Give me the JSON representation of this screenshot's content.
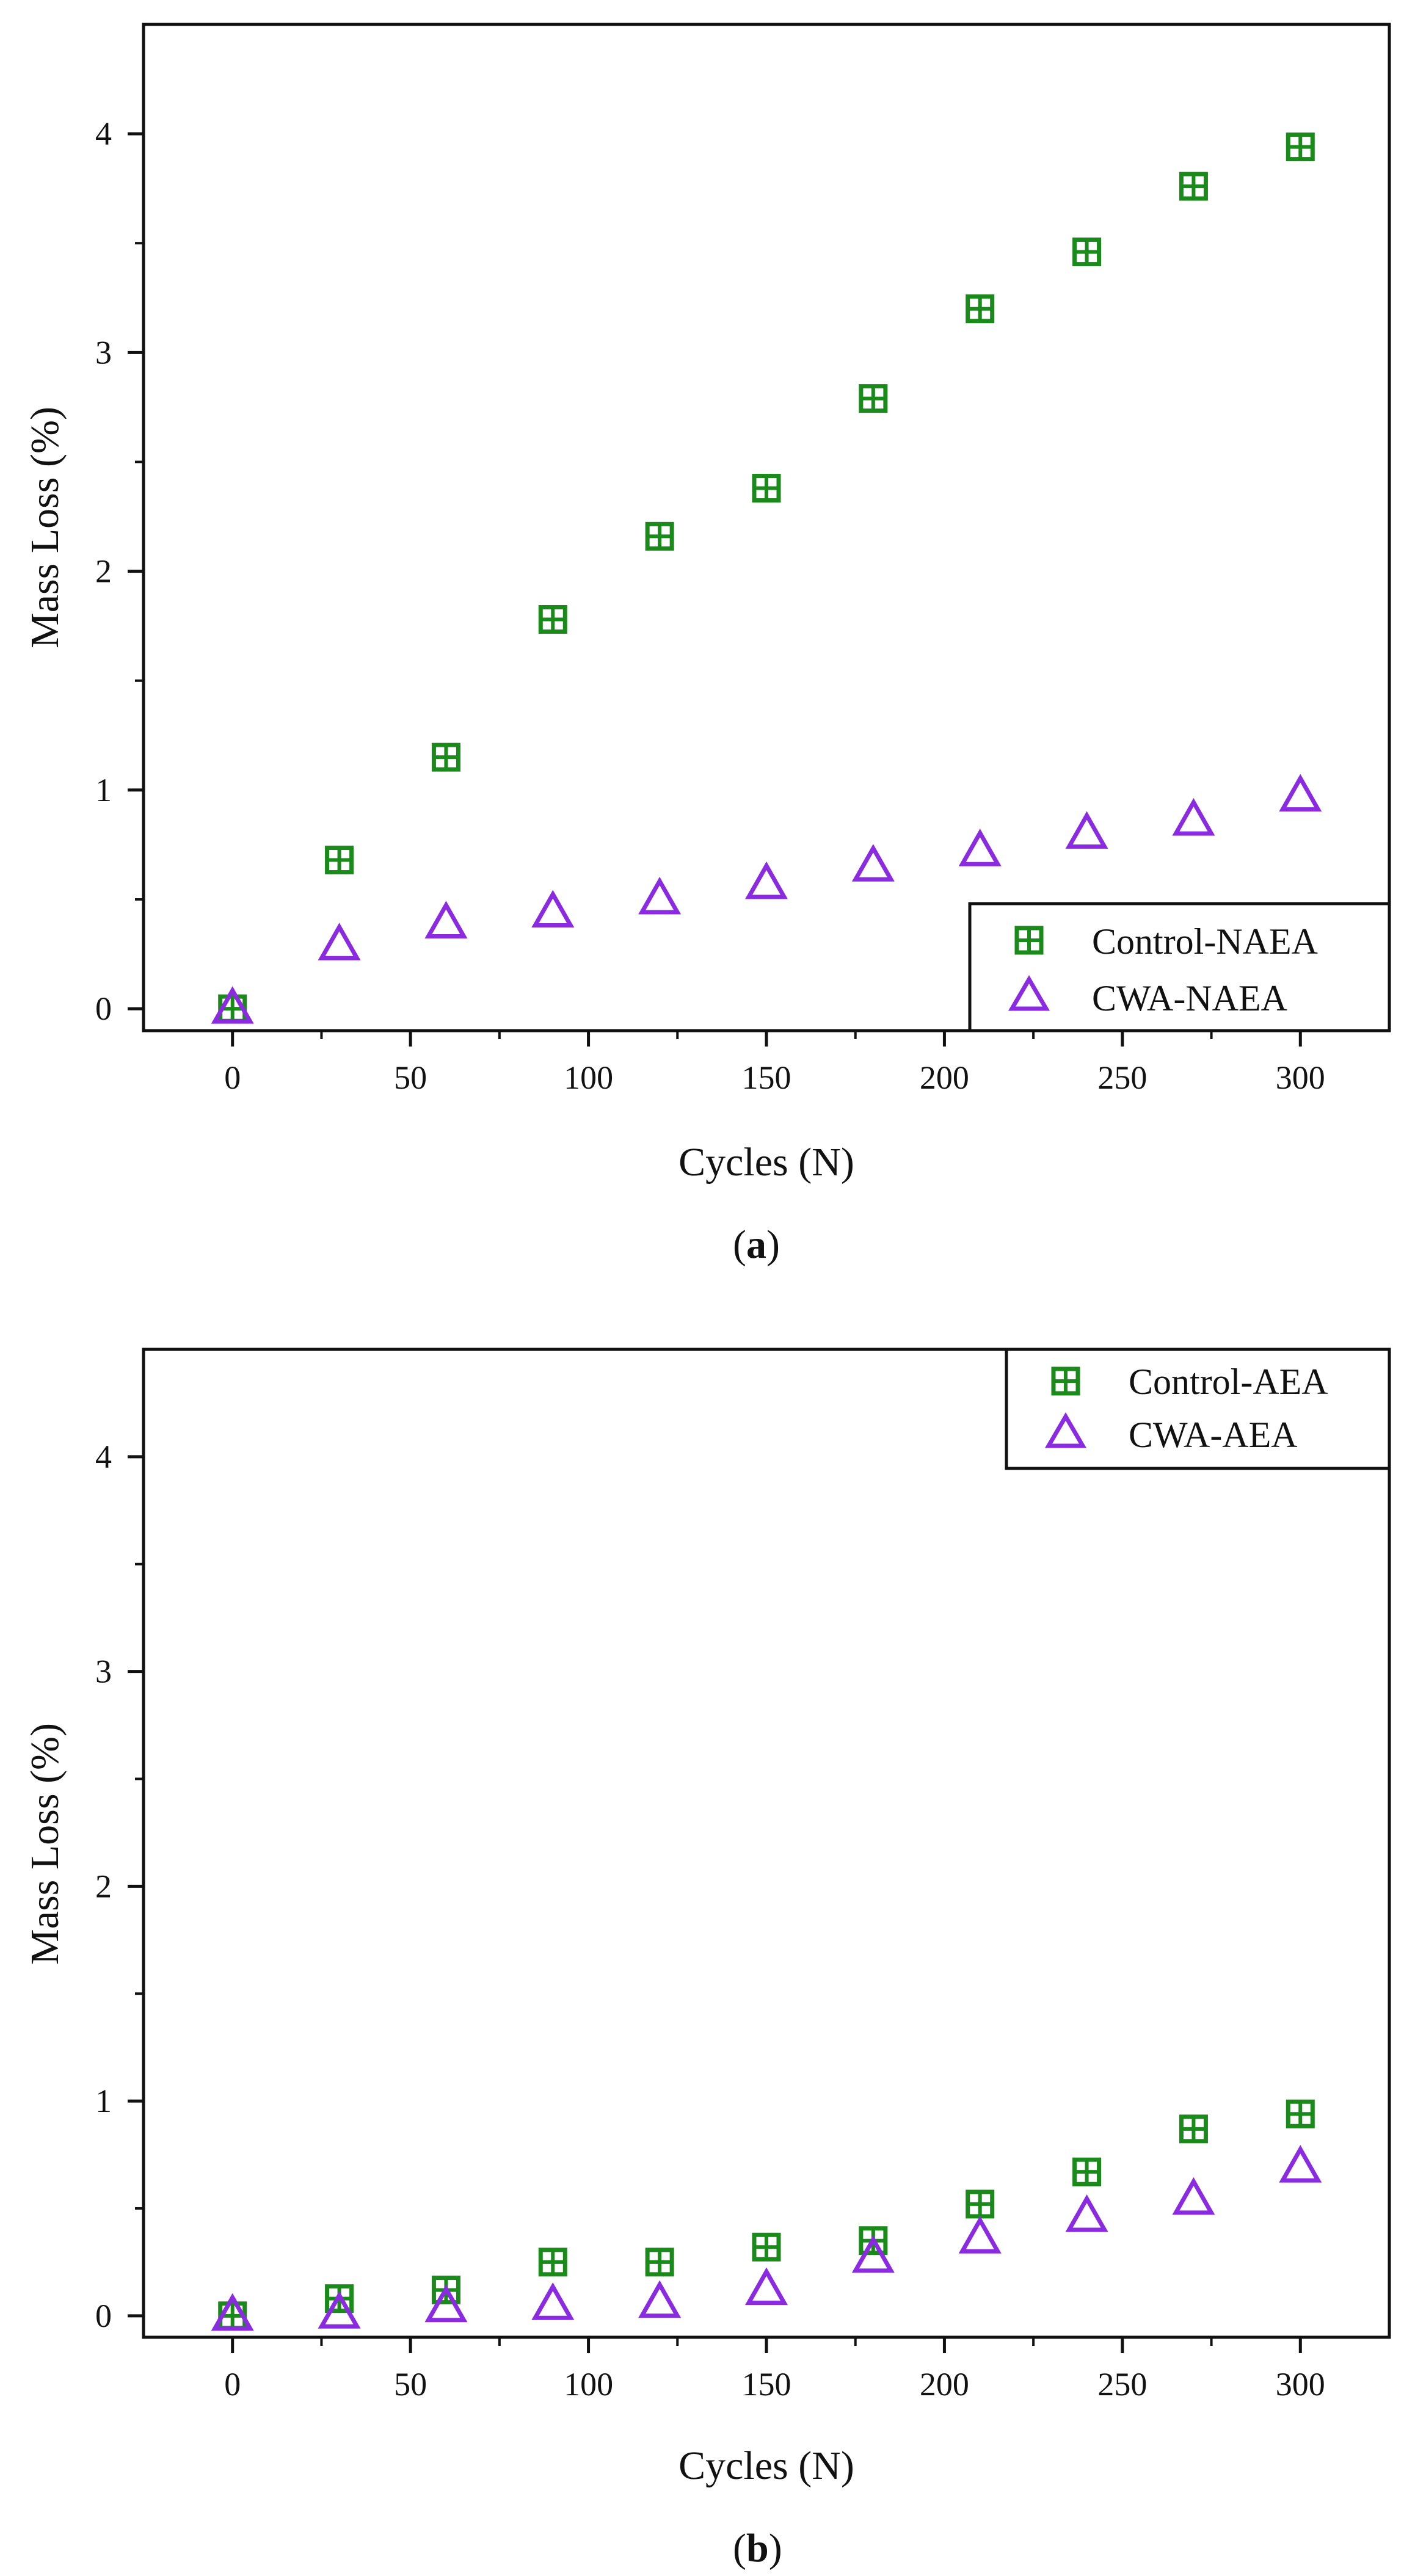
{
  "colors": {
    "control": "#1a8a1a",
    "cwa": "#8a2be2",
    "axis": "#111111"
  },
  "chart_data": [
    {
      "type": "scatter",
      "panel": "a",
      "panel_label": "(a)",
      "panel_letter": "a",
      "xlabel": "Cycles (N)",
      "ylabel": "Mass Loss (%)",
      "xlim": [
        -25,
        325
      ],
      "ylim": [
        -0.1,
        4.5
      ],
      "xticks": [
        0,
        50,
        100,
        150,
        200,
        250,
        300
      ],
      "yticks": [
        0,
        1,
        2,
        3,
        4
      ],
      "legend_position": "bottom-right",
      "series": [
        {
          "name": "Control-NAEA",
          "marker": "square-plus",
          "x": [
            0,
            30,
            60,
            90,
            120,
            150,
            180,
            210,
            240,
            270,
            300
          ],
          "y": [
            0.0,
            0.68,
            1.15,
            1.78,
            2.16,
            2.38,
            2.79,
            3.2,
            3.46,
            3.76,
            3.94
          ]
        },
        {
          "name": "CWA-NAEA",
          "marker": "triangle",
          "x": [
            0,
            30,
            60,
            90,
            120,
            150,
            180,
            210,
            240,
            270,
            300
          ],
          "y": [
            0.0,
            0.29,
            0.39,
            0.44,
            0.5,
            0.57,
            0.65,
            0.72,
            0.8,
            0.86,
            0.97
          ]
        }
      ]
    },
    {
      "type": "scatter",
      "panel": "b",
      "panel_label": "(b)",
      "panel_letter": "b",
      "xlabel": "Cycles (N)",
      "ylabel": "Mass Loss (%)",
      "xlim": [
        -25,
        325
      ],
      "ylim": [
        -0.1,
        4.5
      ],
      "xticks": [
        0,
        50,
        100,
        150,
        200,
        250,
        300
      ],
      "yticks": [
        0,
        1,
        2,
        3,
        4
      ],
      "legend_position": "top-right",
      "series": [
        {
          "name": "Control-AEA",
          "marker": "square-plus",
          "x": [
            0,
            30,
            60,
            90,
            120,
            150,
            180,
            210,
            240,
            270,
            300
          ],
          "y": [
            0.0,
            0.08,
            0.12,
            0.25,
            0.25,
            0.32,
            0.35,
            0.52,
            0.67,
            0.87,
            0.94
          ]
        },
        {
          "name": "CWA-AEA",
          "marker": "triangle",
          "x": [
            0,
            30,
            60,
            90,
            120,
            150,
            180,
            210,
            240,
            270,
            300
          ],
          "y": [
            0.0,
            0.01,
            0.04,
            0.05,
            0.06,
            0.12,
            0.27,
            0.36,
            0.46,
            0.54,
            0.69
          ]
        }
      ]
    }
  ]
}
